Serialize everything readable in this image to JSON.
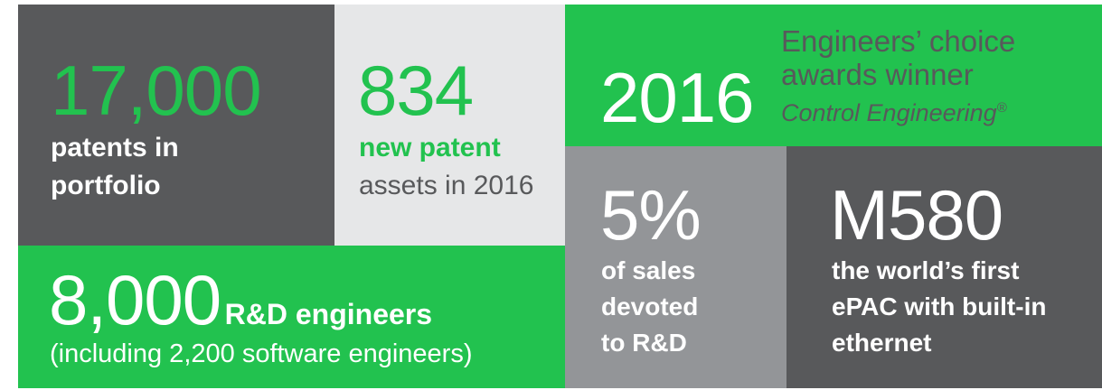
{
  "patents": {
    "number": "17,000",
    "lines": [
      "patents in",
      "portfolio"
    ]
  },
  "new_patents": {
    "number": "834",
    "highlight": "new patent",
    "text": "assets in 2016"
  },
  "award": {
    "year": "2016",
    "lines": [
      "Engineers’ choice",
      "awards winner"
    ],
    "source": "Control Engineering",
    "mark": "®"
  },
  "engineers": {
    "number": "8,000",
    "label": "R&D engineers",
    "note": "(including 2,200 software engineers)"
  },
  "sales": {
    "number": "5%",
    "lines": [
      "of sales",
      "devoted",
      "to R&D"
    ]
  },
  "product": {
    "number": "M580",
    "lines": [
      "the world’s first",
      "ePAC with built-in",
      "ethernet"
    ]
  }
}
